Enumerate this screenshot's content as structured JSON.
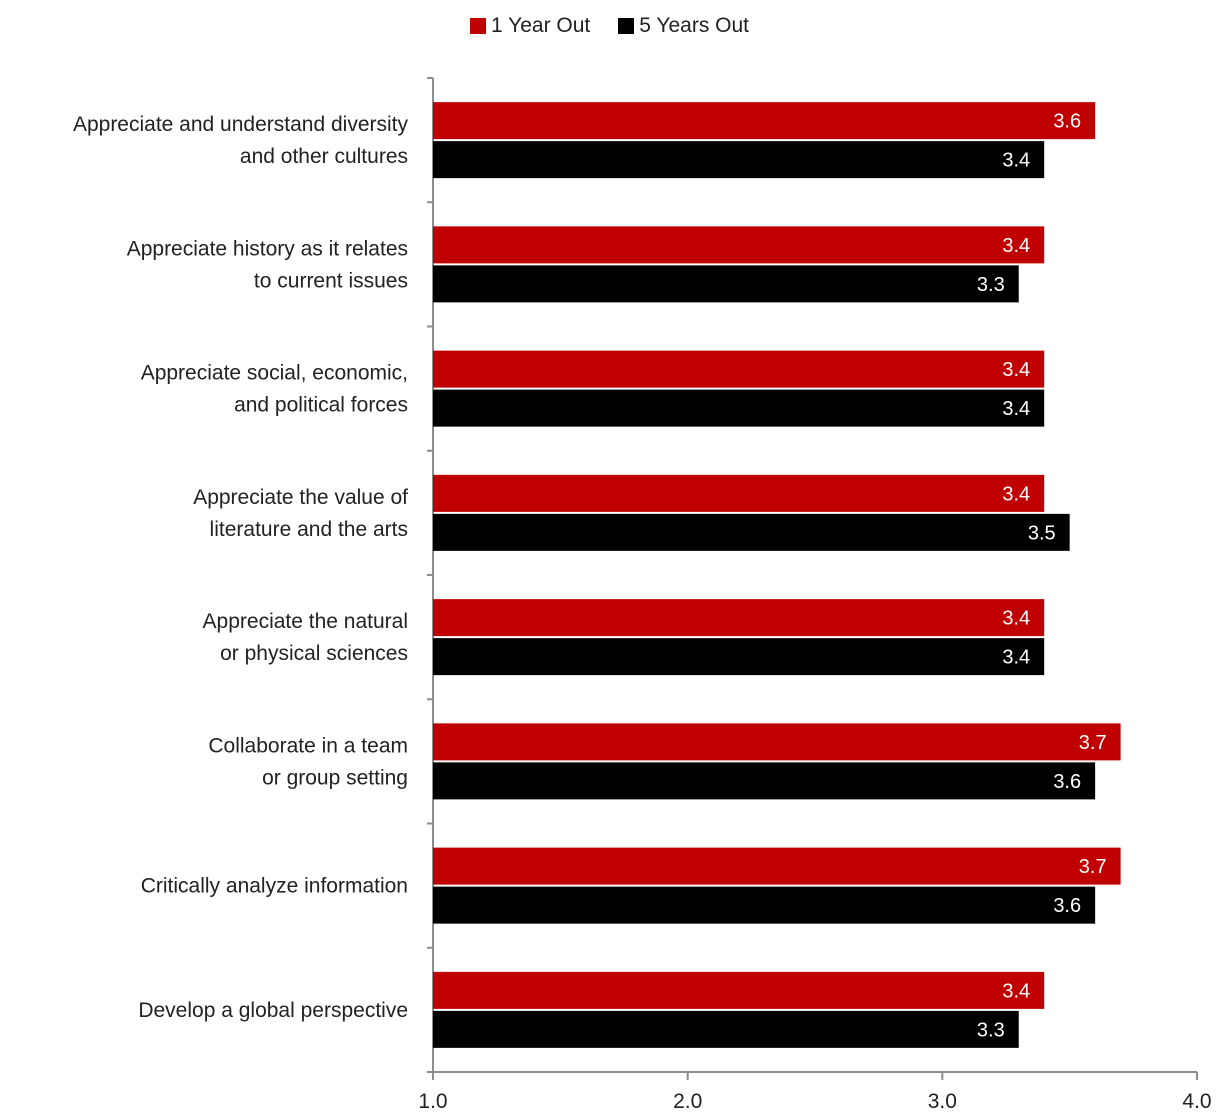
{
  "legend": {
    "series1": "1 Year Out",
    "series2": "5 Years Out"
  },
  "chart_data": {
    "type": "bar",
    "orientation": "horizontal",
    "legend_position": "top",
    "grid": false,
    "categories": [
      [
        "Appreciate and understand diversity",
        "and other cultures"
      ],
      [
        "Appreciate history as it relates",
        "to current issues"
      ],
      [
        "Appreciate social, economic,",
        "and political forces"
      ],
      [
        "Appreciate the value of",
        "literature and the arts"
      ],
      [
        "Appreciate the natural",
        "or physical sciences"
      ],
      [
        "Collaborate in a team",
        "or group setting"
      ],
      [
        "Critically analyze information"
      ],
      [
        "Develop a global perspective"
      ]
    ],
    "series": [
      {
        "name": "1 Year Out",
        "color": "#c00000",
        "values": [
          3.6,
          3.4,
          3.4,
          3.4,
          3.4,
          3.7,
          3.7,
          3.4
        ]
      },
      {
        "name": "5 Years Out",
        "color": "#000000",
        "values": [
          3.4,
          3.3,
          3.4,
          3.5,
          3.4,
          3.6,
          3.6,
          3.3
        ]
      }
    ],
    "xlim": [
      1.0,
      4.0
    ],
    "xticks": [
      "1.0",
      "2.0",
      "3.0",
      "4.0"
    ],
    "xtick_values": [
      1.0,
      2.0,
      3.0,
      4.0
    ]
  }
}
